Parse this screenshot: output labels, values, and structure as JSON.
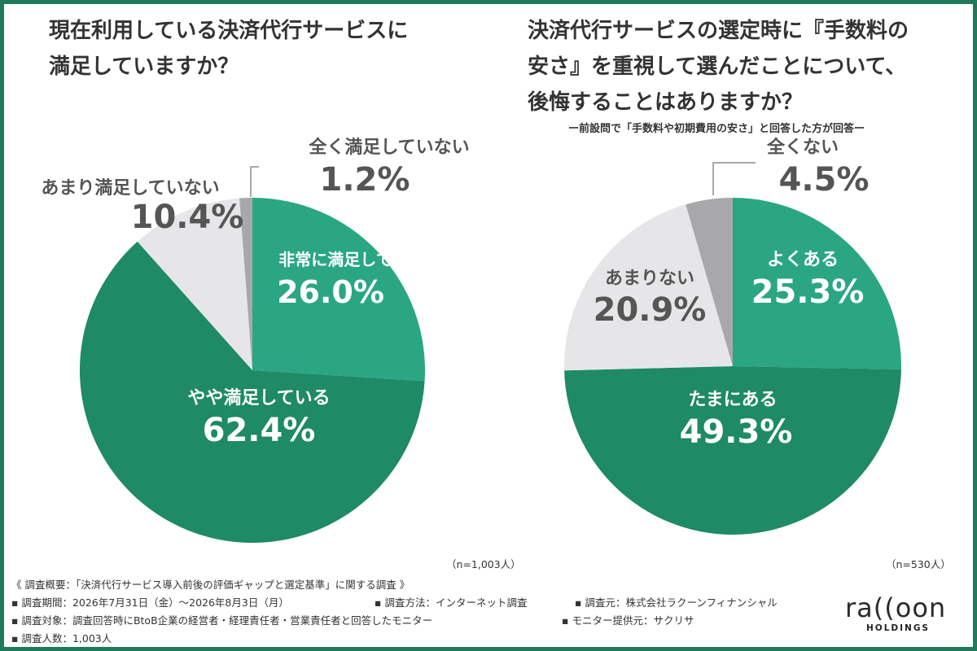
{
  "titles": {
    "left": "現在利用している決済代行サービスに\n満足していますか？",
    "right": "決済代行サービスの選定時に『手数料の\n安さ』を重視して選んだことについて、\n後悔することはありますか？"
  },
  "subnote": "ー前設問で「手数料や初期費用の安さ」と回答した方が回答ー",
  "colors": {
    "dark_green": "#1e8a66",
    "teal": "#2aa683",
    "light_gray": "#e6e6e8",
    "mid_gray": "#a8a8aa",
    "label_gray": "#555555",
    "frame": "#1f7a5c"
  },
  "chart_data": [
    {
      "type": "pie",
      "n_label": "（n=1,003人）",
      "slices": [
        {
          "name": "非常に満足している",
          "value": 26.0,
          "value_label": "26.0%"
        },
        {
          "name": "やや満足している",
          "value": 62.4,
          "value_label": "62.4%"
        },
        {
          "name": "あまり満足していない",
          "value": 10.4,
          "value_label": "10.4%"
        },
        {
          "name": "全く満足していない",
          "value": 1.2,
          "value_label": "1.2%"
        }
      ]
    },
    {
      "type": "pie",
      "n_label": "（n=530人）",
      "slices": [
        {
          "name": "よくある",
          "value": 25.3,
          "value_label": "25.3%"
        },
        {
          "name": "たまにある",
          "value": 49.3,
          "value_label": "49.3%"
        },
        {
          "name": "あまりない",
          "value": 20.9,
          "value_label": "20.9%"
        },
        {
          "name": "全くない",
          "value": 4.5,
          "value_label": "4.5%"
        }
      ]
    }
  ],
  "footer": {
    "overview": "《 調査概要：「決済代行サービス導入前後の評価ギャップと選定基準」に関する調査 》",
    "period": "▪ 調査期間：2026年7月31日（金）〜2026年8月3日（月）",
    "method": "▪ 調査方法：インターネット調査",
    "source": "▪ 調査元：株式会社ラクーンフィナンシャル",
    "target": "▪ 調査対象：調査回答時にBtoB企業の経営者・経理責任者・営業責任者と回答したモニター",
    "provider": "▪ モニター提供元：サクリサ",
    "count": "▪ 調査人数：1,003人"
  },
  "logo": {
    "mark": "ra((oon",
    "sub": "HOLDINGS"
  }
}
